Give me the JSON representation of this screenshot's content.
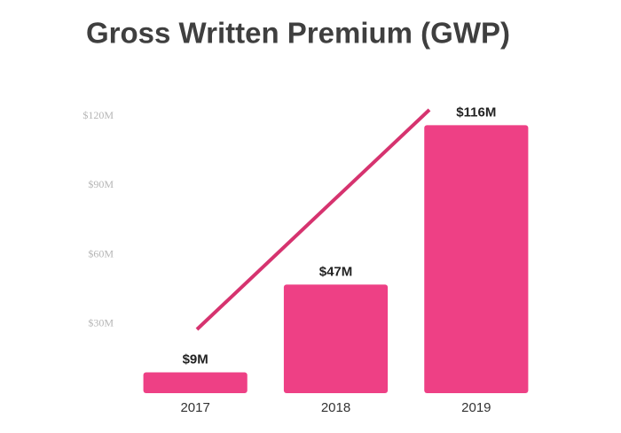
{
  "chart_data": {
    "type": "bar",
    "title": "Gross Written Premium (GWP)",
    "categories": [
      "2017",
      "2018",
      "2019"
    ],
    "values": [
      9,
      47,
      116
    ],
    "value_labels": [
      "$9M",
      "$47M",
      "$116M"
    ],
    "color": "#ee4085",
    "ylim": [
      0,
      120
    ],
    "yticks": [
      {
        "value": 30,
        "label": "$30M"
      },
      {
        "value": 60,
        "label": "$60M"
      },
      {
        "value": 90,
        "label": "$90M"
      },
      {
        "value": 120,
        "label": "$120M"
      }
    ],
    "grid": false
  }
}
